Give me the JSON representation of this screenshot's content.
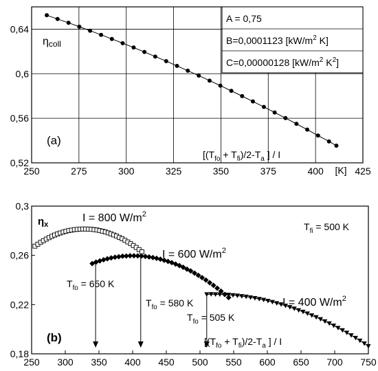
{
  "chart_data": [
    {
      "panel_label": "(a)",
      "type": "line",
      "ylabel": "ηcoll",
      "xlabel": "[(Tfo + Tfi)/2-Ta ] / I",
      "x_unit": "[K]",
      "xlim": [
        250,
        425
      ],
      "ylim": [
        0.52,
        0.66
      ],
      "xticks": [
        250,
        275,
        300,
        325,
        350,
        375,
        400,
        425
      ],
      "xtick_labels": [
        "250",
        "275",
        "300",
        "325",
        "350",
        "375",
        "400",
        "425"
      ],
      "yticks": [
        0.52,
        0.56,
        0.6,
        0.64
      ],
      "ytick_labels": [
        "0,52",
        "0,56",
        "0,6",
        "0,64"
      ],
      "grid": true,
      "fit": {
        "A": 0.75,
        "B": 0.0001123,
        "C": 1.28e-06
      },
      "table_rows": [
        {
          "text": "A = 0,75",
          "sup": "",
          "tail": ""
        },
        {
          "text": "B=0,0001123  [kW/m",
          "sup": "2",
          "tail": " K]"
        },
        {
          "text": "C=0,00000128 [kW/m",
          "sup": "2",
          "tail": " K",
          "sup2": "2",
          "tail2": "]"
        }
      ],
      "series": [
        {
          "x": [
            258,
            263.7,
            269.5,
            275.2,
            280.9,
            286.7,
            292.4,
            298.1,
            303.9,
            309.6,
            315.3,
            321.1,
            326.8,
            332.5,
            338.3,
            344,
            349.7,
            355.5,
            361.2,
            366.9,
            372.7,
            378.4,
            384.1,
            389.9,
            395.6,
            401.3,
            407.1,
            411
          ],
          "y": [
            0.6525,
            0.6491,
            0.6457,
            0.6422,
            0.6386,
            0.6349,
            0.6312,
            0.6274,
            0.6235,
            0.6195,
            0.6154,
            0.6113,
            0.607,
            0.6027,
            0.5983,
            0.5938,
            0.5893,
            0.5846,
            0.5799,
            0.5751,
            0.5702,
            0.5652,
            0.5602,
            0.555,
            0.5498,
            0.5445,
            0.5392,
            0.5354
          ]
        }
      ]
    },
    {
      "panel_label": "(b)",
      "type": "line",
      "ylabel": "ηx",
      "xlabel": "[(Tfo + Tfi)/2-Ta ] / I",
      "xlim": [
        250,
        750
      ],
      "ylim": [
        0.18,
        0.3
      ],
      "xticks": [
        250,
        300,
        350,
        400,
        450,
        500,
        550,
        600,
        650,
        700,
        750
      ],
      "xtick_labels": [
        "250",
        "300",
        "350",
        "400",
        "450",
        "500",
        "550",
        "600",
        "650",
        "700",
        "750"
      ],
      "yticks": [
        0.18,
        0.22,
        0.26,
        0.3
      ],
      "ytick_labels": [
        "0,18",
        "0,22",
        "0,26",
        "0,3"
      ],
      "grid": false,
      "tfi_label": {
        "main": "T",
        "sub": "fi",
        "rest": " = 500 K"
      },
      "series": [
        {
          "name": "I = 800 W/m2",
          "label_main": "I = 800 W/m",
          "label_sup": "2",
          "marker": "square-open",
          "x": [
            255,
            259.2,
            263.4,
            267.5,
            271.7,
            275.9,
            280.1,
            284.2,
            288.4,
            292.6,
            296.8,
            300.9,
            305.1,
            309.3,
            313.5,
            317.6,
            321.8,
            326,
            330.2,
            334.3,
            338.5,
            342.7,
            346.9,
            351,
            355.2,
            359.4,
            363.6,
            367.7,
            371.9,
            376.1,
            380.3,
            384.4,
            388.6,
            392.8,
            397,
            401.1,
            405.3,
            409.5,
            413.7
          ],
          "y": [
            0.2675,
            0.2691,
            0.2706,
            0.2719,
            0.2732,
            0.2744,
            0.2755,
            0.2765,
            0.2774,
            0.2782,
            0.2789,
            0.2795,
            0.2801,
            0.2805,
            0.2809,
            0.2811,
            0.2813,
            0.2814,
            0.2814,
            0.2813,
            0.2812,
            0.2809,
            0.2806,
            0.2801,
            0.2796,
            0.279,
            0.2783,
            0.2775,
            0.2766,
            0.2757,
            0.2746,
            0.2735,
            0.2722,
            0.2709,
            0.2695,
            0.268,
            0.2664,
            0.2647,
            0.2629
          ]
        },
        {
          "name": "I = 600 W/m2",
          "label_main": "I = 600 W/m",
          "label_sup": "2",
          "marker": "diamond-filled",
          "x": [
            340,
            345.6,
            351.2,
            356.9,
            362.5,
            368.1,
            373.8,
            379.4,
            385,
            390.6,
            396.2,
            401.9,
            407.5,
            413.1,
            418.8,
            424.4,
            430,
            435.6,
            441.2,
            446.9,
            452.5,
            458.1,
            463.8,
            469.4,
            475,
            480.6,
            486.2,
            491.9,
            497.5,
            503.1,
            508.8,
            514.4,
            520,
            525.6,
            531.2,
            536.9,
            542.5
          ],
          "y": [
            0.2533,
            0.2545,
            0.2555,
            0.2564,
            0.2572,
            0.2579,
            0.2585,
            0.2589,
            0.2593,
            0.2595,
            0.2597,
            0.2597,
            0.2596,
            0.2594,
            0.2591,
            0.2587,
            0.2582,
            0.2576,
            0.2569,
            0.256,
            0.2551,
            0.2541,
            0.2529,
            0.2517,
            0.2503,
            0.2488,
            0.2473,
            0.2456,
            0.2438,
            0.2419,
            0.2399,
            0.2378,
            0.2356,
            0.2333,
            0.2309,
            0.2283,
            0.2257
          ]
        },
        {
          "name": "I = 400 W/m2",
          "label_main": "I = 400 W/m",
          "label_sup": "2",
          "marker": "triangle-down-filled",
          "x": [
            510,
            516.5,
            523,
            529.5,
            536,
            542.5,
            549,
            555.5,
            562,
            568.5,
            575,
            581.5,
            588,
            594.5,
            601,
            607.5,
            614,
            620.5,
            627,
            633.5,
            640,
            646.5,
            653,
            659.5,
            666,
            672.5,
            679,
            685.5,
            692,
            698.5,
            705,
            711.5,
            718,
            724.5,
            731,
            737.5,
            744,
            750
          ],
          "y": [
            0.2283,
            0.2284,
            0.2283,
            0.2282,
            0.2281,
            0.2279,
            0.2276,
            0.2272,
            0.2268,
            0.2264,
            0.2258,
            0.2252,
            0.2245,
            0.2238,
            0.223,
            0.2221,
            0.2211,
            0.2201,
            0.2191,
            0.2179,
            0.2167,
            0.2154,
            0.2141,
            0.2127,
            0.2112,
            0.2097,
            0.2081,
            0.2064,
            0.2047,
            0.2029,
            0.201,
            0.1991,
            0.1971,
            0.195,
            0.1929,
            0.1907,
            0.1884,
            0.1862
          ]
        }
      ],
      "arrows": [
        {
          "x": 345,
          "y_from": 0.2533,
          "y_to": 0.185,
          "label_main": "T",
          "label_sub": "fo",
          "label_rest": " = 650 K"
        },
        {
          "x": 412,
          "y_from": 0.2594,
          "y_to": 0.185,
          "label_main": "T",
          "label_sub": "fo",
          "label_rest": " = 580 K"
        },
        {
          "x": 510,
          "y_from": 0.2283,
          "y_to": 0.185,
          "label_main": "T",
          "label_sub": "fo",
          "label_rest": " = 505 K"
        }
      ]
    }
  ]
}
